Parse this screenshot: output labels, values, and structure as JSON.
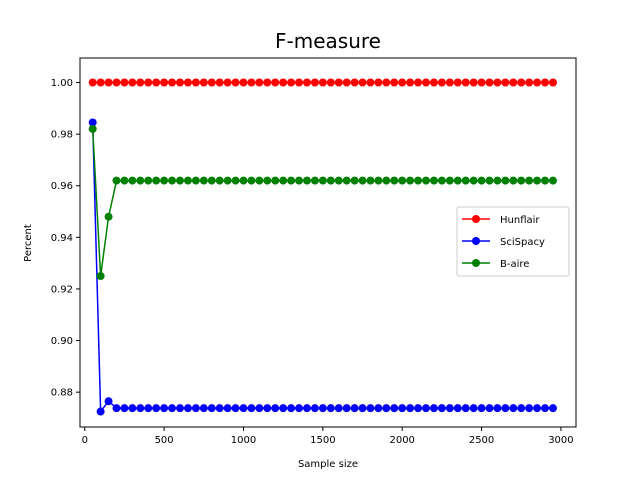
{
  "chart_data": {
    "type": "line",
    "title": "F-measure",
    "xlabel": "Sample size",
    "ylabel": "Percent",
    "xlim": [
      -30,
      3095
    ],
    "ylim": [
      0.8665,
      1.0095
    ],
    "xticks": [
      0,
      500,
      1000,
      1500,
      2000,
      2500,
      3000
    ],
    "xtick_labels": [
      "0",
      "500",
      "1000",
      "1500",
      "2000",
      "2500",
      "3000"
    ],
    "yticks": [
      0.88,
      0.9,
      0.92,
      0.94,
      0.96,
      0.98,
      1.0
    ],
    "ytick_labels": [
      "0.88",
      "0.90",
      "0.92",
      "0.94",
      "0.96",
      "0.98",
      "1.00"
    ],
    "grid": false,
    "legend_position": "center-right",
    "x_start": 50,
    "x_step": 50,
    "x_count": 59,
    "series": [
      {
        "name": "Hunflair",
        "color": "#ff0000",
        "values": [
          1.0,
          1.0,
          1.0,
          1.0,
          1.0,
          1.0,
          1.0,
          1.0,
          1.0,
          1.0,
          1.0,
          1.0,
          1.0,
          1.0,
          1.0,
          1.0,
          1.0,
          1.0,
          1.0,
          1.0,
          1.0,
          1.0,
          1.0,
          1.0,
          1.0,
          1.0,
          1.0,
          1.0,
          1.0,
          1.0,
          1.0,
          1.0,
          1.0,
          1.0,
          1.0,
          1.0,
          1.0,
          1.0,
          1.0,
          1.0,
          1.0,
          1.0,
          1.0,
          1.0,
          1.0,
          1.0,
          1.0,
          1.0,
          1.0,
          1.0,
          1.0,
          1.0,
          1.0,
          1.0,
          1.0,
          1.0,
          1.0,
          1.0,
          1.0
        ]
      },
      {
        "name": "SciSpacy",
        "color": "#0000ff",
        "values": [
          0.9845,
          0.8725,
          0.8765,
          0.8738,
          0.8738,
          0.8738,
          0.8738,
          0.8738,
          0.8738,
          0.8738,
          0.8738,
          0.8738,
          0.8738,
          0.8738,
          0.8738,
          0.8738,
          0.8738,
          0.8738,
          0.8738,
          0.8738,
          0.8738,
          0.8738,
          0.8738,
          0.8738,
          0.8738,
          0.8738,
          0.8738,
          0.8738,
          0.8738,
          0.8738,
          0.8738,
          0.8738,
          0.8738,
          0.8738,
          0.8738,
          0.8738,
          0.8738,
          0.8738,
          0.8738,
          0.8738,
          0.8738,
          0.8738,
          0.8738,
          0.8738,
          0.8738,
          0.8738,
          0.8738,
          0.8738,
          0.8738,
          0.8738,
          0.8738,
          0.8738,
          0.8738,
          0.8738,
          0.8738,
          0.8738,
          0.8738,
          0.8738,
          0.8738
        ]
      },
      {
        "name": "B-aire",
        "color": "#008000",
        "values": [
          0.982,
          0.925,
          0.948,
          0.962,
          0.962,
          0.962,
          0.962,
          0.962,
          0.962,
          0.962,
          0.962,
          0.962,
          0.962,
          0.962,
          0.962,
          0.962,
          0.962,
          0.962,
          0.962,
          0.962,
          0.962,
          0.962,
          0.962,
          0.962,
          0.962,
          0.962,
          0.962,
          0.962,
          0.962,
          0.962,
          0.962,
          0.962,
          0.962,
          0.962,
          0.962,
          0.962,
          0.962,
          0.962,
          0.962,
          0.962,
          0.962,
          0.962,
          0.962,
          0.962,
          0.962,
          0.962,
          0.962,
          0.962,
          0.962,
          0.962,
          0.962,
          0.962,
          0.962,
          0.962,
          0.962,
          0.962,
          0.962,
          0.962,
          0.962
        ]
      }
    ]
  }
}
